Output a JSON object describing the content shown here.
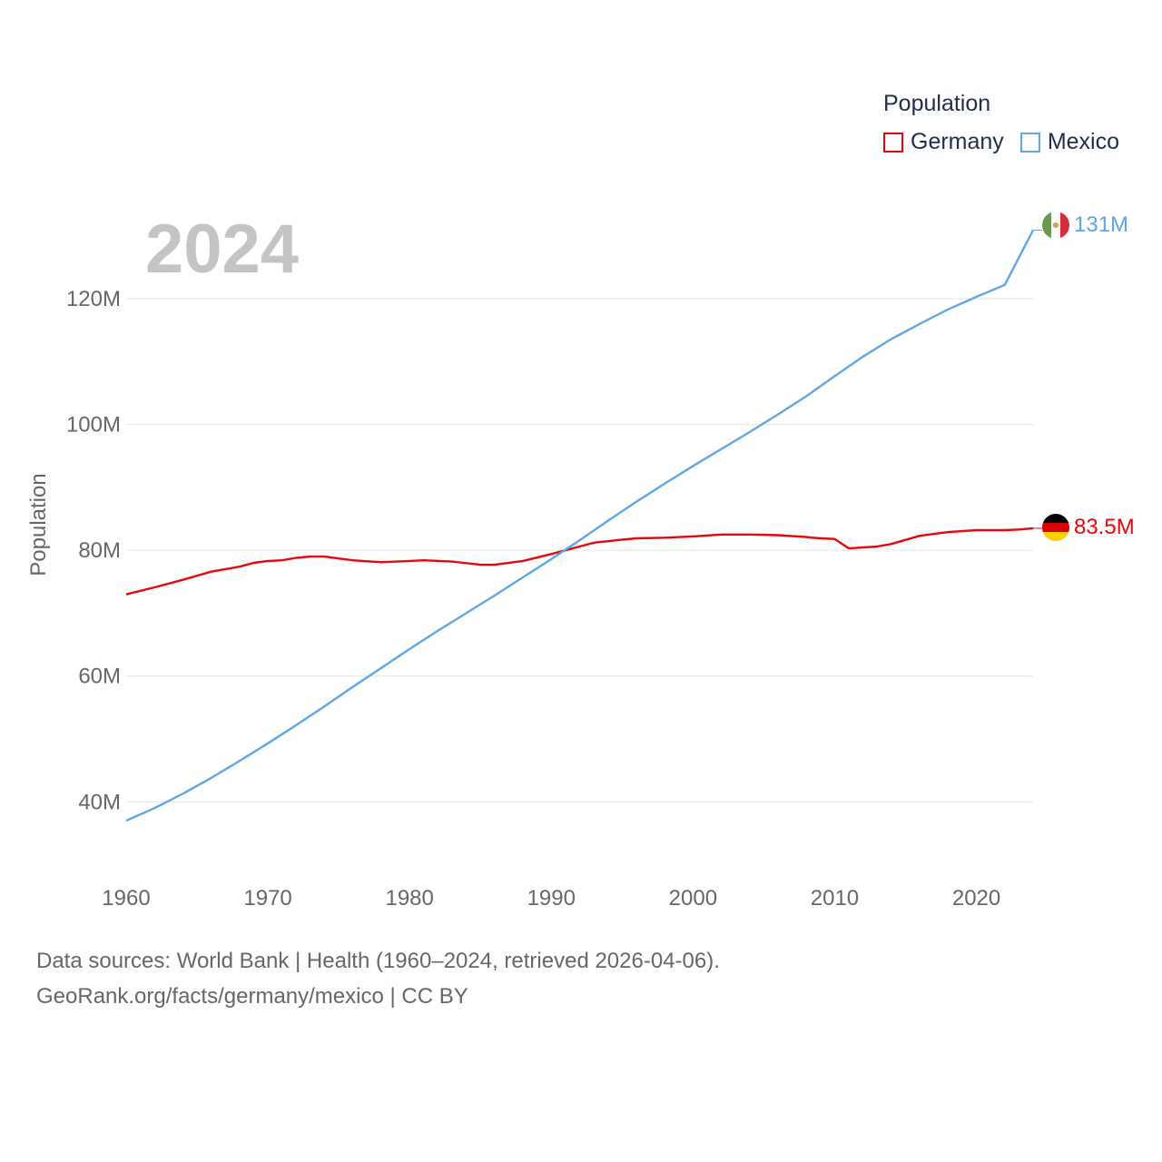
{
  "legend": {
    "title": "Population",
    "items": [
      {
        "name": "Germany",
        "color": "#e8060b"
      },
      {
        "name": "Mexico",
        "color": "#5ea6e6"
      }
    ]
  },
  "footer": {
    "line1": "Data sources: World Bank | Health (1960–2024, retrieved 2026-04-06).",
    "line2": "GeoRank.org/facts/germany/mexico | CC BY"
  },
  "chart_data": {
    "type": "line",
    "year_label": "2024",
    "ylabel": "Population",
    "xlim": [
      1960,
      2024
    ],
    "ylim": [
      29.5,
      133
    ],
    "yticks": [
      40,
      60,
      80,
      100,
      120
    ],
    "ytick_labels": [
      "40M",
      "60M",
      "80M",
      "100M",
      "120M"
    ],
    "xticks": [
      1960,
      1970,
      1980,
      1990,
      2000,
      2010,
      2020
    ],
    "xtick_labels": [
      "1960",
      "1970",
      "1980",
      "1990",
      "2000",
      "2010",
      "2020"
    ],
    "grid": true,
    "series": [
      {
        "name": "Germany",
        "color": "#e8060b",
        "end_label": "83.5M",
        "flag": "germany-flag",
        "points": [
          [
            1960,
            73.0
          ],
          [
            1962,
            74.1
          ],
          [
            1964,
            75.3
          ],
          [
            1966,
            76.6
          ],
          [
            1968,
            77.4
          ],
          [
            1969,
            78.0
          ],
          [
            1970,
            78.3
          ],
          [
            1971,
            78.4
          ],
          [
            1972,
            78.8
          ],
          [
            1973,
            79.0
          ],
          [
            1974,
            79.0
          ],
          [
            1975,
            78.7
          ],
          [
            1976,
            78.4
          ],
          [
            1978,
            78.1
          ],
          [
            1980,
            78.3
          ],
          [
            1981,
            78.4
          ],
          [
            1983,
            78.2
          ],
          [
            1985,
            77.7
          ],
          [
            1986,
            77.7
          ],
          [
            1988,
            78.3
          ],
          [
            1990,
            79.4
          ],
          [
            1992,
            80.6
          ],
          [
            1993,
            81.2
          ],
          [
            1995,
            81.7
          ],
          [
            1996,
            81.9
          ],
          [
            1998,
            82.0
          ],
          [
            2000,
            82.2
          ],
          [
            2002,
            82.5
          ],
          [
            2004,
            82.5
          ],
          [
            2006,
            82.4
          ],
          [
            2008,
            82.1
          ],
          [
            2009,
            81.9
          ],
          [
            2010,
            81.8
          ],
          [
            2011,
            80.3
          ],
          [
            2013,
            80.6
          ],
          [
            2014,
            81.0
          ],
          [
            2016,
            82.3
          ],
          [
            2018,
            82.9
          ],
          [
            2020,
            83.2
          ],
          [
            2022,
            83.2
          ],
          [
            2023,
            83.3
          ],
          [
            2024,
            83.5
          ]
        ]
      },
      {
        "name": "Mexico",
        "color": "#5ea6e6",
        "end_label": "131M",
        "flag": "mexico-flag",
        "points": [
          [
            1960,
            37.0
          ],
          [
            1962,
            39.0
          ],
          [
            1964,
            41.3
          ],
          [
            1966,
            43.8
          ],
          [
            1968,
            46.5
          ],
          [
            1970,
            49.3
          ],
          [
            1972,
            52.2
          ],
          [
            1974,
            55.2
          ],
          [
            1976,
            58.3
          ],
          [
            1978,
            61.3
          ],
          [
            1980,
            64.3
          ],
          [
            1982,
            67.2
          ],
          [
            1984,
            70.0
          ],
          [
            1986,
            72.8
          ],
          [
            1988,
            75.7
          ],
          [
            1990,
            78.6
          ],
          [
            1992,
            81.6
          ],
          [
            1994,
            84.7
          ],
          [
            1996,
            87.7
          ],
          [
            1998,
            90.6
          ],
          [
            2000,
            93.4
          ],
          [
            2002,
            96.1
          ],
          [
            2004,
            98.8
          ],
          [
            2006,
            101.6
          ],
          [
            2008,
            104.5
          ],
          [
            2010,
            107.7
          ],
          [
            2012,
            110.8
          ],
          [
            2014,
            113.6
          ],
          [
            2016,
            116.0
          ],
          [
            2018,
            118.3
          ],
          [
            2020,
            120.3
          ],
          [
            2022,
            122.2
          ],
          [
            2024,
            130.9
          ]
        ]
      }
    ]
  }
}
